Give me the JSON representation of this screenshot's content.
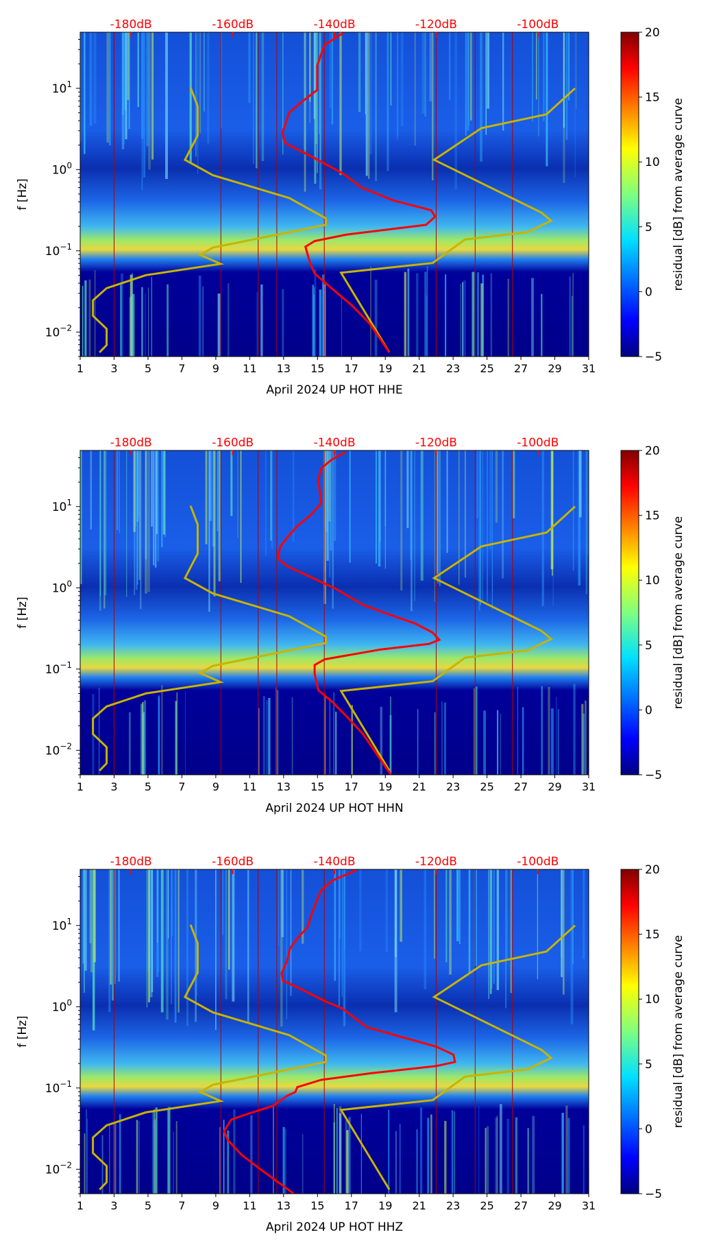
{
  "chart_data": {
    "type": "heatmap",
    "colorbar": {
      "label": "residual [dB] from average curve",
      "range": [
        -5,
        20
      ],
      "ticks": [
        -5,
        0,
        5,
        10,
        15,
        20
      ],
      "colormap": "jet"
    },
    "x_axis": {
      "range": [
        1,
        31
      ],
      "ticks": [
        1,
        3,
        5,
        7,
        9,
        11,
        13,
        15,
        17,
        19,
        21,
        23,
        25,
        27,
        29,
        31
      ]
    },
    "y_axis": {
      "label": "f [Hz]",
      "scale": "log",
      "range": [
        0.005,
        49
      ],
      "tick_exponents": [
        1,
        0,
        -1,
        -2
      ]
    },
    "top_axis": {
      "range_dB": [
        -190,
        -90
      ],
      "ticks": [
        -180,
        -160,
        -140,
        -120,
        -100
      ],
      "tick_labels": [
        "-180dB",
        "-160dB",
        "-140dB",
        "-120dB",
        "-100dB"
      ],
      "color": "#ff0000"
    },
    "event_days": [
      3.0,
      9.3,
      11.5,
      12.6,
      15.4,
      22.0,
      24.3,
      26.5
    ],
    "noise_models": {
      "color": "#c8b400",
      "low_model": {
        "dB": [
          -168.3,
          -166.9,
          -166.9,
          -169.4,
          -163.9,
          -148.9,
          -141.7,
          -141.7,
          -163.9,
          -166.4,
          -162.4,
          -177.1,
          -184.8,
          -187.5,
          -187.5,
          -184.8,
          -184.8,
          -186.2
        ],
        "log10_f": [
          1.01,
          0.78,
          0.42,
          0.12,
          -0.07,
          -0.35,
          -0.6,
          -0.68,
          -0.96,
          -1.05,
          -1.16,
          -1.3,
          -1.46,
          -1.61,
          -1.8,
          -1.96,
          -2.16,
          -2.25
        ]
      },
      "high_model": {
        "dB": [
          -92.7,
          -98.3,
          -111.1,
          -120.4,
          -99.3,
          -97.4,
          -102.0,
          -114.3,
          -120.7,
          -138.7,
          -129.2
        ],
        "log10_f": [
          1.0,
          0.68,
          0.51,
          0.12,
          -0.53,
          -0.63,
          -0.77,
          -0.86,
          -1.15,
          -1.27,
          -2.25
        ]
      }
    },
    "panels": [
      {
        "xlabel": "April 2024 UP HOT  HHE",
        "average_psd": {
          "color": "#ff0000",
          "dB": [
            -138.3,
            -142.0,
            -143.4,
            -143.4,
            -146.5,
            -148.9,
            -150.2,
            -149.8,
            -143.9,
            -138.3,
            -134.7,
            -128.4,
            -121.0,
            -120.2,
            -122.0,
            -128.4,
            -137.6,
            -143.9,
            -145.7,
            -144.8,
            -143.9,
            -140.2,
            -136.6,
            -133.0,
            -129.2
          ],
          "log10_f": [
            1.68,
            1.53,
            1.28,
            0.98,
            0.83,
            0.7,
            0.46,
            0.33,
            0.14,
            -0.05,
            -0.22,
            -0.38,
            -0.5,
            -0.58,
            -0.68,
            -0.73,
            -0.8,
            -0.88,
            -0.95,
            -1.15,
            -1.28,
            -1.48,
            -1.67,
            -1.9,
            -2.25
          ]
        }
      },
      {
        "xlabel": "April 2024 UP HOT  HHN",
        "average_psd": {
          "color": "#ff0000",
          "dB": [
            -137.8,
            -140.5,
            -142.6,
            -143.2,
            -142.6,
            -144.6,
            -147.3,
            -149.4,
            -150.7,
            -151.1,
            -149.4,
            -144.6,
            -139.8,
            -134.4,
            -129.6,
            -124.1,
            -120.7,
            -119.4,
            -121.4,
            -131.0,
            -141.9,
            -143.9,
            -143.9,
            -143.2,
            -140.5,
            -137.8,
            -134.4,
            -128.9
          ],
          "log10_f": [
            1.67,
            1.58,
            1.47,
            1.33,
            1.04,
            0.9,
            0.76,
            0.61,
            0.5,
            0.36,
            0.27,
            0.13,
            -0.01,
            -0.21,
            -0.32,
            -0.44,
            -0.55,
            -0.64,
            -0.69,
            -0.76,
            -0.88,
            -0.95,
            -1.06,
            -1.26,
            -1.4,
            -1.57,
            -1.8,
            -2.3
          ]
        }
      },
      {
        "xlabel": "April 2024 UP HOT  HHZ",
        "average_psd": {
          "color": "#ff0000",
          "dB": [
            -135.7,
            -140.5,
            -142.6,
            -143.6,
            -144.6,
            -145.3,
            -147.3,
            -148.7,
            -149.4,
            -150.4,
            -150.1,
            -147.3,
            -141.9,
            -138.5,
            -133.7,
            -127.5,
            -120.0,
            -116.6,
            -116.3,
            -120.0,
            -133.0,
            -142.6,
            -147.3,
            -147.7,
            -149.4,
            -152.1,
            -157.6,
            -160.3,
            -161.7,
            -161.0,
            -158.3,
            -154.8,
            -148.0
          ],
          "log10_f": [
            1.68,
            1.55,
            1.43,
            1.29,
            1.12,
            0.98,
            0.84,
            0.72,
            0.55,
            0.41,
            0.32,
            0.24,
            0.07,
            -0.02,
            -0.25,
            -0.36,
            -0.49,
            -0.59,
            -0.68,
            -0.73,
            -0.82,
            -0.9,
            -0.99,
            -1.05,
            -1.1,
            -1.22,
            -1.33,
            -1.39,
            -1.53,
            -1.64,
            -1.82,
            -1.99,
            -2.3
          ]
        }
      }
    ]
  }
}
